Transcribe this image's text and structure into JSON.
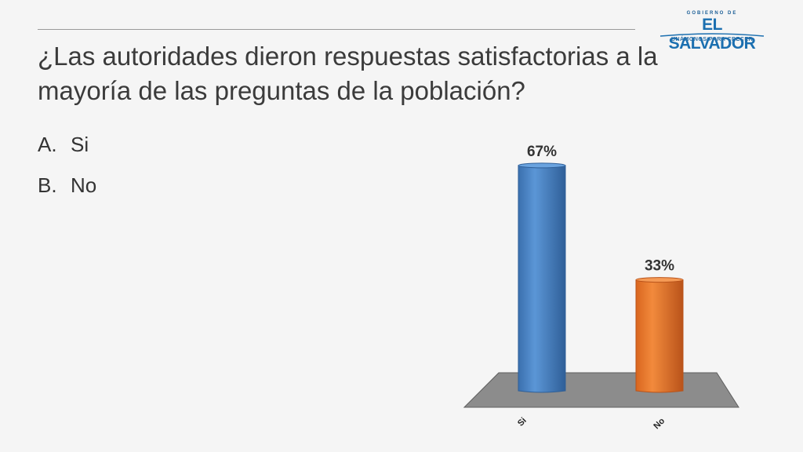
{
  "slide": {
    "title": "¿Las autoridades dieron respuestas satisfactorias a la mayoría de las preguntas de la población?",
    "options": [
      {
        "letter": "A.",
        "text": "Si"
      },
      {
        "letter": "B.",
        "text": "No"
      }
    ]
  },
  "logo": {
    "small": "GOBIERNO DE",
    "main": "EL SALVADOR",
    "sub": "UNÁMONOS PARA CRECER"
  },
  "colors": {
    "background": "#f5f5f5",
    "bar_si": "#4a86c8",
    "bar_no": "#e8732a",
    "floor": "#8c8c8c",
    "logo": "#1b6fb0"
  },
  "chart_data": {
    "type": "bar",
    "categories": [
      "Si",
      "No"
    ],
    "values": [
      67,
      33
    ],
    "data_labels": [
      "67%",
      "33%"
    ],
    "ylim": [
      0,
      70
    ],
    "grid": false,
    "style": "3d-cylinder"
  }
}
